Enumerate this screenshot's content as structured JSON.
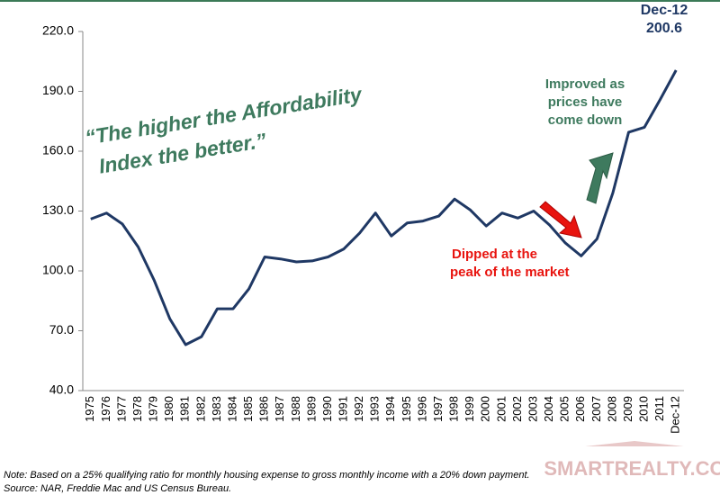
{
  "chart_data": {
    "type": "line",
    "categories": [
      "1975",
      "1976",
      "1977",
      "1978",
      "1979",
      "1980",
      "1981",
      "1982",
      "1983",
      "1984",
      "1985",
      "1986",
      "1987",
      "1988",
      "1989",
      "1990",
      "1991",
      "1992",
      "1993",
      "1994",
      "1995",
      "1996",
      "1997",
      "1998",
      "1999",
      "2000",
      "2001",
      "2002",
      "2003",
      "2004",
      "2005",
      "2006",
      "2007",
      "2008",
      "2009",
      "2010",
      "2011",
      "Dec-12"
    ],
    "values": [
      126,
      129,
      123.5,
      112,
      95.5,
      76,
      63,
      67,
      81,
      81,
      91,
      107,
      106,
      104.5,
      105,
      107,
      111,
      119,
      129,
      117.5,
      124,
      125,
      127.5,
      136,
      130.5,
      122.5,
      129,
      126.5,
      130,
      123,
      114,
      107.5,
      116,
      139,
      169.5,
      172,
      186,
      200.6
    ],
    "color": "#1f3864",
    "ylim": [
      40,
      220
    ],
    "yticks": [
      {
        "value": 40,
        "label": "40.0"
      },
      {
        "value": 70,
        "label": "70.0"
      },
      {
        "value": 100,
        "label": "100.0"
      },
      {
        "value": 130,
        "label": "130.0"
      },
      {
        "value": 160,
        "label": "160.0"
      },
      {
        "value": 190,
        "label": "190.0"
      },
      {
        "value": 220,
        "label": "220.0"
      }
    ],
    "quote": [
      "“The higher the Affordability",
      "Index the better.”"
    ],
    "annotation_up": [
      "Improved as",
      "prices have",
      "come down"
    ],
    "annotation_down": [
      "Dipped at the",
      "peak of the market"
    ],
    "notes": [
      "Note: Based on a 25% qualifying ratio for monthly housing expense to gross monthly income with a 20% down payment.",
      "Source: NAR, Freddie Mac and US Census Bureau."
    ],
    "watermark": "SMARTREALTY.CO"
  }
}
